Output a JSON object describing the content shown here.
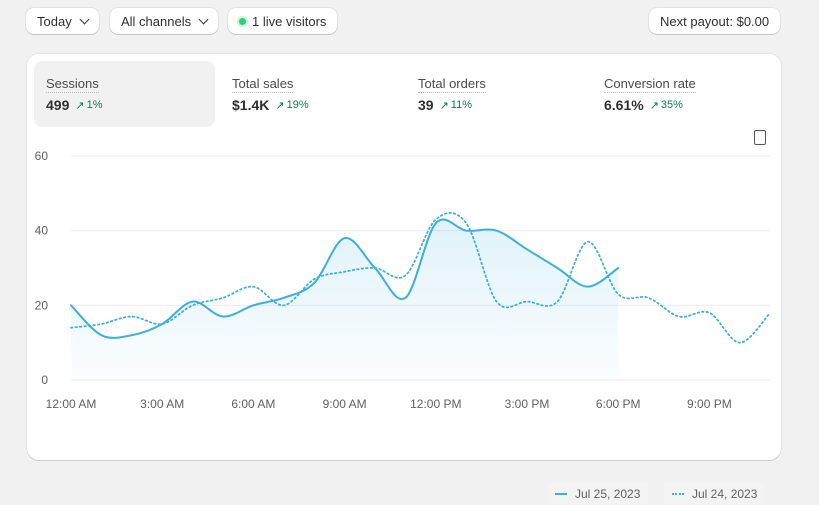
{
  "toolbar": {
    "date_filter": "Today",
    "channel_filter": "All channels",
    "live_visitors": "1 live visitors",
    "payout": "Next payout: $0.00"
  },
  "metrics": [
    {
      "label": "Sessions",
      "value": "499",
      "delta": "1%"
    },
    {
      "label": "Total sales",
      "value": "$1.4K",
      "delta": "19%"
    },
    {
      "label": "Total orders",
      "value": "39",
      "delta": "11%"
    },
    {
      "label": "Conversion rate",
      "value": "6.61%",
      "delta": "35%"
    }
  ],
  "colors": {
    "series": "#3daee0",
    "positive": "#0c7a50",
    "live": "#29d17a"
  },
  "chart_data": {
    "type": "line",
    "ylim": [
      0,
      60
    ],
    "yticks": [
      "0",
      "20",
      "40",
      "60"
    ],
    "xticks": [
      "12:00 AM",
      "3:00 AM",
      "6:00 AM",
      "9:00 AM",
      "12:00 PM",
      "3:00 PM",
      "6:00 PM",
      "9:00 PM"
    ],
    "x_hours": [
      0,
      1,
      2,
      3,
      4,
      5,
      6,
      7,
      8,
      9,
      10,
      11,
      12,
      13,
      14,
      15,
      16,
      17,
      18,
      19,
      20,
      21,
      22,
      23
    ],
    "grid": true,
    "legend_placement": "bottom-right",
    "series": [
      {
        "name": "Jul 25, 2023",
        "style": "solid",
        "fill": true,
        "values": [
          20,
          12,
          12,
          15,
          21,
          17,
          20,
          22,
          26,
          38,
          30,
          22,
          42,
          40,
          40,
          35,
          30,
          25,
          30
        ]
      },
      {
        "name": "Jul 24, 2023",
        "style": "dotted",
        "values": [
          14,
          15,
          17,
          15,
          20,
          22,
          25,
          20,
          27,
          29,
          30,
          28,
          43,
          42,
          21,
          21,
          21,
          37,
          23,
          22,
          17,
          18,
          10,
          18
        ]
      }
    ]
  }
}
